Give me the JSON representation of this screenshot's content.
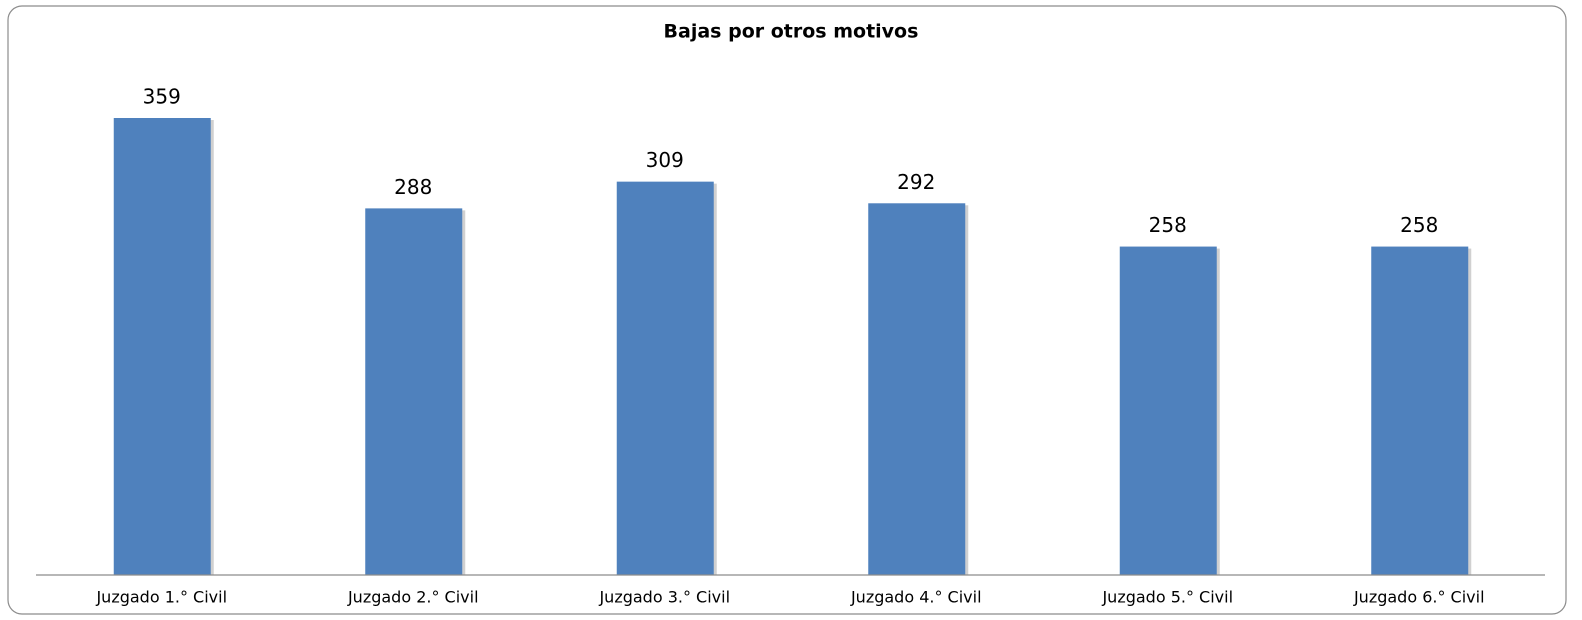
{
  "chart_data": {
    "type": "bar",
    "title": "Bajas  por otros motivos",
    "categories": [
      "Juzgado 1.° Civil",
      "Juzgado 2.° Civil",
      "Juzgado 3.° Civil",
      "Juzgado 4.° Civil",
      "Juzgado 5.° Civil",
      "Juzgado 6.° Civil"
    ],
    "values": [
      359,
      288,
      309,
      292,
      258,
      258
    ],
    "color": "#4f81bd"
  }
}
